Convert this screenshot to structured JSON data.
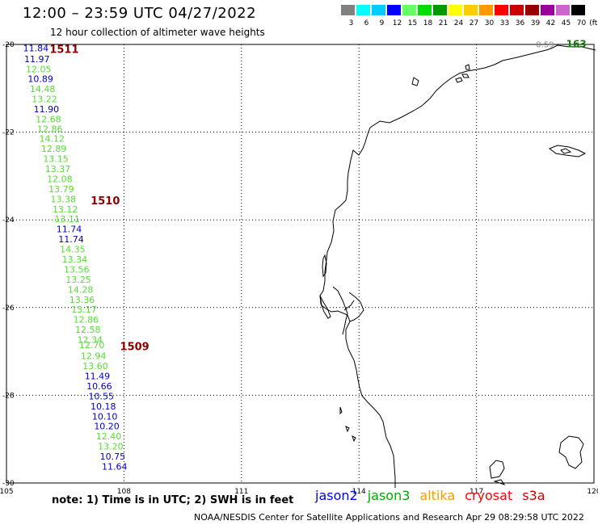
{
  "header": {
    "title": "12:00 – 23:59 UTC 04/27/2022",
    "subtitle": "12 hour collection of altimeter wave heights"
  },
  "color_scale": {
    "unit_label": "(ft)",
    "bins": [
      {
        "label": "3",
        "color": "#808080"
      },
      {
        "label": "6",
        "color": "#00ffff"
      },
      {
        "label": "9",
        "color": "#00ccff"
      },
      {
        "label": "12",
        "color": "#0000ff"
      },
      {
        "label": "15",
        "color": "#66ff66"
      },
      {
        "label": "18",
        "color": "#00dd00"
      },
      {
        "label": "21",
        "color": "#009900"
      },
      {
        "label": "24",
        "color": "#ffff00"
      },
      {
        "label": "27",
        "color": "#ffcc00"
      },
      {
        "label": "30",
        "color": "#ff9900"
      },
      {
        "label": "33",
        "color": "#ff0000"
      },
      {
        "label": "36",
        "color": "#cc0000"
      },
      {
        "label": "39",
        "color": "#990000"
      },
      {
        "label": "42",
        "color": "#990099"
      },
      {
        "label": "45",
        "color": "#cc66cc"
      },
      {
        "label": "70",
        "color": "#000000"
      }
    ]
  },
  "map": {
    "lon_range": [
      105,
      120
    ],
    "lat_range": [
      -30,
      -20
    ],
    "lon_ticks": [
      "105",
      "108",
      "111",
      "114",
      "117",
      "120"
    ],
    "lat_ticks": [
      "-20",
      "-22",
      "-24",
      "-26",
      "-28",
      "-30"
    ]
  },
  "track": [
    {
      "lat": -20.08,
      "lon": 105.75,
      "value": "11.84",
      "color": "#0000cc"
    },
    {
      "lat": -20.33,
      "lon": 105.78,
      "value": "11.97",
      "color": "#0000cc"
    },
    {
      "lat": -20.56,
      "lon": 105.82,
      "value": "12.05",
      "color": "#55dd33"
    },
    {
      "lat": -20.78,
      "lon": 105.87,
      "value": "10.89",
      "color": "#0000cc"
    },
    {
      "lat": -21.01,
      "lon": 105.92,
      "value": "14.48",
      "color": "#55dd33"
    },
    {
      "lat": -21.24,
      "lon": 105.97,
      "value": "13.22",
      "color": "#55dd33"
    },
    {
      "lat": -21.47,
      "lon": 106.02,
      "value": "11.90",
      "color": "#0000cc"
    },
    {
      "lat": -21.7,
      "lon": 106.07,
      "value": "12.68",
      "color": "#55dd33"
    },
    {
      "lat": -21.92,
      "lon": 106.11,
      "value": "12.86",
      "color": "#55dd33"
    },
    {
      "lat": -22.15,
      "lon": 106.16,
      "value": "14.12",
      "color": "#55dd33"
    },
    {
      "lat": -22.38,
      "lon": 106.21,
      "value": "12.89",
      "color": "#55dd33"
    },
    {
      "lat": -22.61,
      "lon": 106.26,
      "value": "13.15",
      "color": "#55dd33"
    },
    {
      "lat": -22.84,
      "lon": 106.31,
      "value": "13.37",
      "color": "#55dd33"
    },
    {
      "lat": -23.07,
      "lon": 106.36,
      "value": "12.08",
      "color": "#55dd33"
    },
    {
      "lat": -23.3,
      "lon": 106.4,
      "value": "13.79",
      "color": "#55dd33"
    },
    {
      "lat": -23.53,
      "lon": 106.45,
      "value": "13.38",
      "color": "#55dd33"
    },
    {
      "lat": -23.76,
      "lon": 106.5,
      "value": "13.12",
      "color": "#55dd33"
    },
    {
      "lat": -23.98,
      "lon": 106.55,
      "value": "13.11",
      "color": "#55dd33"
    },
    {
      "lat": -24.21,
      "lon": 106.6,
      "value": "11.74",
      "color": "#0000cc"
    },
    {
      "lat": -24.44,
      "lon": 106.65,
      "value": "11.74",
      "color": "#0000cc"
    },
    {
      "lat": -24.67,
      "lon": 106.69,
      "value": "14.35",
      "color": "#55dd33"
    },
    {
      "lat": -24.9,
      "lon": 106.74,
      "value": "13.34",
      "color": "#55dd33"
    },
    {
      "lat": -25.13,
      "lon": 106.79,
      "value": "13.56",
      "color": "#55dd33"
    },
    {
      "lat": -25.36,
      "lon": 106.84,
      "value": "13.25",
      "color": "#55dd33"
    },
    {
      "lat": -25.59,
      "lon": 106.89,
      "value": "14.28",
      "color": "#55dd33"
    },
    {
      "lat": -25.82,
      "lon": 106.93,
      "value": "13.36",
      "color": "#55dd33"
    },
    {
      "lat": -26.04,
      "lon": 106.98,
      "value": "13.17",
      "color": "#55dd33"
    },
    {
      "lat": -26.27,
      "lon": 107.03,
      "value": "12.86",
      "color": "#55dd33"
    },
    {
      "lat": -26.5,
      "lon": 107.08,
      "value": "12.58",
      "color": "#55dd33"
    },
    {
      "lat": -26.73,
      "lon": 107.13,
      "value": "12.34",
      "color": "#55dd33"
    },
    {
      "lat": -26.85,
      "lon": 107.18,
      "value": "12.70",
      "color": "#55dd33"
    },
    {
      "lat": -27.1,
      "lon": 107.22,
      "value": "12.94",
      "color": "#55dd33"
    },
    {
      "lat": -27.33,
      "lon": 107.27,
      "value": "13.60",
      "color": "#55dd33"
    },
    {
      "lat": -27.56,
      "lon": 107.32,
      "value": "11.49",
      "color": "#0000cc"
    },
    {
      "lat": -27.79,
      "lon": 107.37,
      "value": "10.66",
      "color": "#0000cc"
    },
    {
      "lat": -28.02,
      "lon": 107.42,
      "value": "10.55",
      "color": "#0000cc"
    },
    {
      "lat": -28.25,
      "lon": 107.47,
      "value": "10.18",
      "color": "#0000cc"
    },
    {
      "lat": -28.48,
      "lon": 107.51,
      "value": "10.10",
      "color": "#0000cc"
    },
    {
      "lat": -28.7,
      "lon": 107.56,
      "value": "10.20",
      "color": "#0000cc"
    },
    {
      "lat": -28.93,
      "lon": 107.61,
      "value": "12.40",
      "color": "#55dd33"
    },
    {
      "lat": -29.16,
      "lon": 107.66,
      "value": "13.20",
      "color": "#55dd33"
    },
    {
      "lat": -29.39,
      "lon": 107.71,
      "value": "10.75",
      "color": "#0000cc"
    },
    {
      "lat": -29.62,
      "lon": 107.76,
      "value": "11.64",
      "color": "#0000cc"
    }
  ],
  "time_labels": [
    {
      "lat": -20.1,
      "lon": 106.1,
      "text": "1511",
      "color": "#8b0000"
    },
    {
      "lat": -23.55,
      "lon": 107.15,
      "text": "1510",
      "color": "#8b0000"
    },
    {
      "lat": -26.88,
      "lon": 107.9,
      "text": "1509",
      "color": "#8b0000"
    }
  ],
  "corner_values": [
    {
      "lat": -19.95,
      "lon": 118.75,
      "text": "0.59",
      "color": "#888888"
    },
    {
      "lat": -19.95,
      "lon": 119.55,
      "text": "163",
      "color": "#117711",
      "bold": true
    }
  ],
  "footer": {
    "note": "note:  1) Time is in UTC;  2) SWH is in feet",
    "missions": [
      {
        "name": "jason2",
        "color": "#0000ff"
      },
      {
        "name": "jason3",
        "color": "#00aa00"
      },
      {
        "name": "altika",
        "color": "#ff9900"
      },
      {
        "name": "cryosat",
        "color": "#ff0000"
      },
      {
        "name": "s3a",
        "color": "#cc0000"
      }
    ],
    "credit": "NOAA/NESDIS Center for Satellite Applications and Research   Apr 29 08:29:58 UTC 2022"
  }
}
